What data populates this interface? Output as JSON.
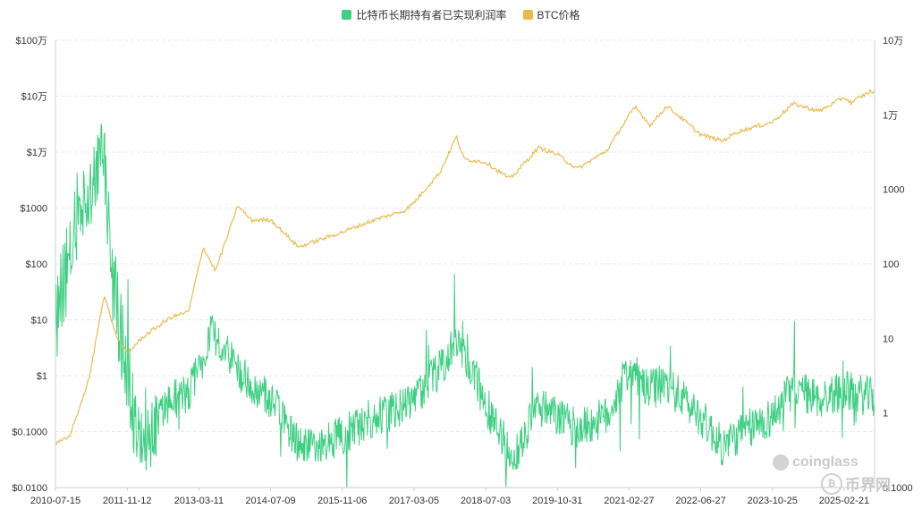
{
  "colors": {
    "profit": "#3ecf82",
    "price": "#e9bb4b",
    "grid": "#e9e9e9",
    "axis": "#cfcfcf"
  },
  "watermarks": {
    "coinglass": "coinglass",
    "bijie": "币界网"
  },
  "chart_data": {
    "type": "line",
    "title": "",
    "legend": [
      "比特币长期持有者已实现利润率",
      "BTC价格"
    ],
    "legend_position": "top-center",
    "grid": true,
    "x": {
      "tick_labels": [
        "2010-07-15",
        "2011-11-12",
        "2013-03-11",
        "2014-07-09",
        "2015-11-06",
        "2017-03-05",
        "2018-07-03",
        "2019-10-31",
        "2021-02-27",
        "2022-06-27",
        "2023-10-25",
        "2025-02-21"
      ],
      "range": [
        "2010-07-15",
        "2025-09-15"
      ]
    },
    "y_left": {
      "scale": "log",
      "range": [
        0.01,
        1000000
      ],
      "tick_labels": [
        "$0.0100",
        "$0.1000",
        "$1",
        "$10",
        "$100",
        "$1000",
        "$1万",
        "$10万",
        "$100万"
      ]
    },
    "y_right": {
      "scale": "log",
      "range": [
        0.1,
        100000
      ],
      "tick_labels": [
        "0.1000",
        "1",
        "10",
        "100",
        "1000",
        "1万",
        "10万"
      ]
    },
    "series": [
      {
        "name": "比特币长期持有者已实现利润率",
        "axis": "right",
        "color": "#3ecf82",
        "points": [
          [
            "2010-07-15",
            12
          ],
          [
            "2010-09-01",
            60
          ],
          [
            "2010-10-15",
            90
          ],
          [
            "2010-12-01",
            400
          ],
          [
            "2011-02-01",
            800
          ],
          [
            "2011-04-01",
            1500
          ],
          [
            "2011-06-08",
            2500
          ],
          [
            "2011-08-01",
            80
          ],
          [
            "2011-10-01",
            10
          ],
          [
            "2011-11-12",
            3
          ],
          [
            "2012-01-01",
            1.2
          ],
          [
            "2012-03-01",
            0.6
          ],
          [
            "2012-06-01",
            0.8
          ],
          [
            "2012-09-01",
            1.5
          ],
          [
            "2013-01-01",
            1.8
          ],
          [
            "2013-03-11",
            4
          ],
          [
            "2013-06-01",
            12
          ],
          [
            "2013-09-01",
            8
          ],
          [
            "2013-12-01",
            4
          ],
          [
            "2014-03-01",
            2
          ],
          [
            "2014-07-09",
            1.5
          ],
          [
            "2015-01-01",
            0.4
          ],
          [
            "2015-06-01",
            0.35
          ],
          [
            "2015-11-06",
            0.5
          ],
          [
            "2016-06-01",
            0.9
          ],
          [
            "2017-01-01",
            1.2
          ],
          [
            "2017-03-05",
            1.6
          ],
          [
            "2017-09-01",
            4
          ],
          [
            "2017-12-20",
            10
          ],
          [
            "2018-04-01",
            4
          ],
          [
            "2018-07-03",
            1.3
          ],
          [
            "2018-12-15",
            0.3
          ],
          [
            "2019-03-01",
            0.35
          ],
          [
            "2019-06-01",
            1.2
          ],
          [
            "2019-10-31",
            0.9
          ],
          [
            "2020-03-15",
            0.6
          ],
          [
            "2020-10-01",
            0.9
          ],
          [
            "2021-02-27",
            4
          ],
          [
            "2021-07-01",
            2
          ],
          [
            "2021-11-01",
            2.5
          ],
          [
            "2022-06-27",
            0.9
          ],
          [
            "2022-11-20",
            0.35
          ],
          [
            "2023-03-01",
            0.5
          ],
          [
            "2023-10-25",
            0.9
          ],
          [
            "2024-03-15",
            2.2
          ],
          [
            "2024-09-01",
            1.5
          ],
          [
            "2025-02-21",
            2
          ],
          [
            "2025-09-15",
            1.6
          ]
        ]
      },
      {
        "name": "BTC价格",
        "axis": "left",
        "color": "#e9bb4b",
        "points": [
          [
            "2010-07-15",
            0.06
          ],
          [
            "2010-10-15",
            0.08
          ],
          [
            "2011-01-01",
            0.3
          ],
          [
            "2011-03-01",
            0.9
          ],
          [
            "2011-06-08",
            28
          ],
          [
            "2011-09-01",
            5
          ],
          [
            "2011-11-12",
            2.5
          ],
          [
            "2012-03-01",
            5
          ],
          [
            "2012-09-01",
            11
          ],
          [
            "2013-01-01",
            14
          ],
          [
            "2013-04-09",
            200
          ],
          [
            "2013-07-01",
            75
          ],
          [
            "2013-11-30",
            1100
          ],
          [
            "2014-03-01",
            600
          ],
          [
            "2014-07-09",
            620
          ],
          [
            "2015-01-14",
            200
          ],
          [
            "2015-11-06",
            370
          ],
          [
            "2016-06-01",
            600
          ],
          [
            "2017-01-01",
            900
          ],
          [
            "2017-03-05",
            1250
          ],
          [
            "2017-09-01",
            4500
          ],
          [
            "2017-12-17",
            19000
          ],
          [
            "2018-02-06",
            7500
          ],
          [
            "2018-07-03",
            6600
          ],
          [
            "2018-12-15",
            3300
          ],
          [
            "2019-06-26",
            12000
          ],
          [
            "2019-10-31",
            9100
          ],
          [
            "2020-03-15",
            5000
          ],
          [
            "2020-10-01",
            10700
          ],
          [
            "2021-02-27",
            46000
          ],
          [
            "2021-04-14",
            63000
          ],
          [
            "2021-07-20",
            30000
          ],
          [
            "2021-11-10",
            67000
          ],
          [
            "2022-06-27",
            20500
          ],
          [
            "2022-11-21",
            15800
          ],
          [
            "2023-03-01",
            23000
          ],
          [
            "2023-10-25",
            34500
          ],
          [
            "2024-03-14",
            73000
          ],
          [
            "2024-09-06",
            54000
          ],
          [
            "2025-02-21",
            96000
          ],
          [
            "2025-04-08",
            76000
          ],
          [
            "2025-08-14",
            122000
          ],
          [
            "2025-09-15",
            115000
          ]
        ]
      }
    ]
  }
}
